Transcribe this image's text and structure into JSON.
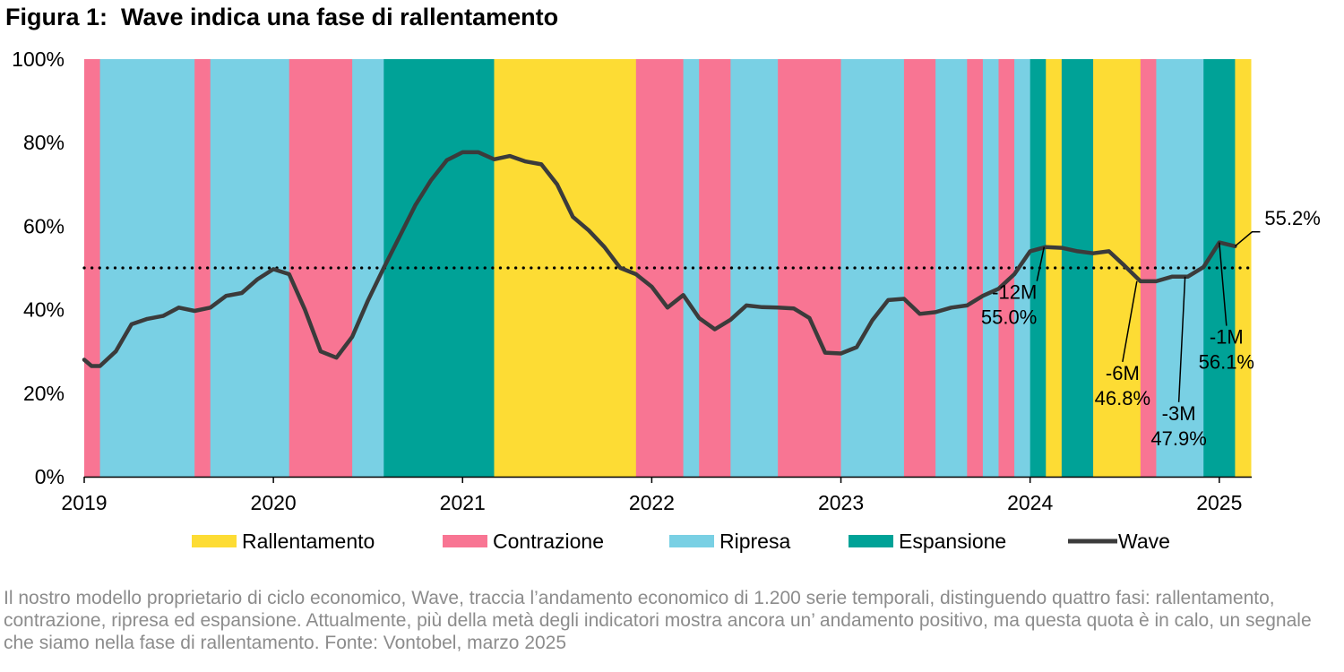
{
  "title": "Figura 1:  Wave indica una fase di rallentamento",
  "caption": "Il nostro modello proprietario di ciclo economico, Wave, traccia l’andamento economico di 1.200 serie temporali, distinguendo quattro fasi: rallentamento, contrazione, ripresa ed espansione. Attualmente, più della metà degli indicatori mostra ancora un’ andamento positivo, ma questa quota è in calo, un segnale che siamo nella fase di rallentamento. Fonte: Vontobel, marzo 2025",
  "colors": {
    "Rallentamento": "#fddc34",
    "Contrazione": "#f87593",
    "Ripresa": "#79d0e4",
    "Espansione": "#00a297",
    "Wave": "#3b3b3b"
  },
  "chart_data": {
    "type": "line",
    "y_tick_labels": [
      "0%",
      "20%",
      "40%",
      "60%",
      "80%",
      "100%"
    ],
    "ylim": [
      0,
      100
    ],
    "x_tick_labels": [
      "2019",
      "2020",
      "2021",
      "2022",
      "2023",
      "2024",
      "2025"
    ],
    "xlim": [
      "2019-01",
      "2025-03"
    ],
    "reference_line": 50,
    "legend": [
      {
        "label": "Rallentamento",
        "key": "Rallentamento",
        "kind": "bar"
      },
      {
        "label": "Contrazione",
        "key": "Contrazione",
        "kind": "bar"
      },
      {
        "label": "Ripresa",
        "key": "Ripresa",
        "kind": "bar"
      },
      {
        "label": "Espansione",
        "key": "Espansione",
        "kind": "bar"
      },
      {
        "label": "Wave",
        "key": "Wave",
        "kind": "line"
      }
    ],
    "phases": [
      {
        "start": "2019-01",
        "end": "2019-01",
        "phase": "Contrazione"
      },
      {
        "start": "2019-02",
        "end": "2019-07",
        "phase": "Ripresa"
      },
      {
        "start": "2019-08",
        "end": "2019-08",
        "phase": "Contrazione"
      },
      {
        "start": "2019-09",
        "end": "2020-01",
        "phase": "Ripresa"
      },
      {
        "start": "2020-02",
        "end": "2020-05",
        "phase": "Contrazione"
      },
      {
        "start": "2020-06",
        "end": "2020-07",
        "phase": "Ripresa"
      },
      {
        "start": "2020-08",
        "end": "2021-02",
        "phase": "Espansione"
      },
      {
        "start": "2021-03",
        "end": "2021-11",
        "phase": "Rallentamento"
      },
      {
        "start": "2021-12",
        "end": "2022-02",
        "phase": "Contrazione"
      },
      {
        "start": "2022-03",
        "end": "2022-03",
        "phase": "Ripresa"
      },
      {
        "start": "2022-04",
        "end": "2022-05",
        "phase": "Contrazione"
      },
      {
        "start": "2022-06",
        "end": "2022-08",
        "phase": "Ripresa"
      },
      {
        "start": "2022-09",
        "end": "2022-12",
        "phase": "Contrazione"
      },
      {
        "start": "2023-01",
        "end": "2023-04",
        "phase": "Ripresa"
      },
      {
        "start": "2023-05",
        "end": "2023-06",
        "phase": "Contrazione"
      },
      {
        "start": "2023-07",
        "end": "2023-08",
        "phase": "Ripresa"
      },
      {
        "start": "2023-09",
        "end": "2023-09",
        "phase": "Contrazione"
      },
      {
        "start": "2023-10",
        "end": "2023-10",
        "phase": "Ripresa"
      },
      {
        "start": "2023-11",
        "end": "2023-11",
        "phase": "Contrazione"
      },
      {
        "start": "2023-12",
        "end": "2023-12",
        "phase": "Ripresa"
      },
      {
        "start": "2024-01",
        "end": "2024-01",
        "phase": "Espansione"
      },
      {
        "start": "2024-02",
        "end": "2024-02",
        "phase": "Rallentamento"
      },
      {
        "start": "2024-03",
        "end": "2024-04",
        "phase": "Espansione"
      },
      {
        "start": "2024-05",
        "end": "2024-07",
        "phase": "Rallentamento"
      },
      {
        "start": "2024-08",
        "end": "2024-08",
        "phase": "Contrazione"
      },
      {
        "start": "2024-09",
        "end": "2024-11",
        "phase": "Ripresa"
      },
      {
        "start": "2024-12",
        "end": "2025-01",
        "phase": "Espansione"
      },
      {
        "start": "2025-02",
        "end": "2025-02",
        "phase": "Rallentamento"
      }
    ],
    "series": [
      {
        "name": "Wave",
        "points": [
          [
            "2019-01",
            28
          ],
          [
            "2019-01-15",
            26.5
          ],
          [
            "2019-02",
            26.5
          ],
          [
            "2019-03",
            30
          ],
          [
            "2019-04",
            36.5
          ],
          [
            "2019-05",
            37.8
          ],
          [
            "2019-06",
            38.5
          ],
          [
            "2019-07",
            40.5
          ],
          [
            "2019-08",
            39.7
          ],
          [
            "2019-09",
            40.5
          ],
          [
            "2019-10",
            43.3
          ],
          [
            "2019-11",
            44
          ],
          [
            "2019-12",
            47.3
          ],
          [
            "2020-01",
            49.7
          ],
          [
            "2020-02",
            48.5
          ],
          [
            "2020-03",
            40
          ],
          [
            "2020-04",
            30
          ],
          [
            "2020-05",
            28.5
          ],
          [
            "2020-06",
            33.5
          ],
          [
            "2020-07",
            42.2
          ],
          [
            "2020-08",
            50
          ],
          [
            "2020-09",
            57.5
          ],
          [
            "2020-10",
            65
          ],
          [
            "2020-11",
            71
          ],
          [
            "2020-12",
            75.8
          ],
          [
            "2021-01",
            77.7
          ],
          [
            "2021-02",
            77.7
          ],
          [
            "2021-03",
            76
          ],
          [
            "2021-04",
            76.8
          ],
          [
            "2021-05",
            75.5
          ],
          [
            "2021-06",
            74.8
          ],
          [
            "2021-07",
            70
          ],
          [
            "2021-08",
            62.2
          ],
          [
            "2021-09",
            59
          ],
          [
            "2021-10",
            55
          ],
          [
            "2021-11",
            50
          ],
          [
            "2021-12",
            48.5
          ],
          [
            "2022-01",
            45.5
          ],
          [
            "2022-02",
            40.5
          ],
          [
            "2022-03",
            43.5
          ],
          [
            "2022-04",
            38
          ],
          [
            "2022-05",
            35.3
          ],
          [
            "2022-06",
            37.6
          ],
          [
            "2022-07",
            41
          ],
          [
            "2022-08",
            40.6
          ],
          [
            "2022-09",
            40.5
          ],
          [
            "2022-10",
            40.3
          ],
          [
            "2022-11",
            38
          ],
          [
            "2022-12",
            29.7
          ],
          [
            "2023-01",
            29.5
          ],
          [
            "2023-02",
            31
          ],
          [
            "2023-03",
            37.5
          ],
          [
            "2023-04",
            42.3
          ],
          [
            "2023-05",
            42.6
          ],
          [
            "2023-06",
            39
          ],
          [
            "2023-07",
            39.4
          ],
          [
            "2023-08",
            40.5
          ],
          [
            "2023-09",
            41
          ],
          [
            "2023-10",
            43.3
          ],
          [
            "2023-11",
            45
          ],
          [
            "2023-12",
            48.5
          ],
          [
            "2024-01",
            54
          ],
          [
            "2024-02",
            55
          ],
          [
            "2024-03",
            54.8
          ],
          [
            "2024-04",
            54
          ],
          [
            "2024-05",
            53.5
          ],
          [
            "2024-06",
            54
          ],
          [
            "2024-07",
            50.5
          ],
          [
            "2024-08",
            46.8
          ],
          [
            "2024-09",
            46.8
          ],
          [
            "2024-10",
            47.9
          ],
          [
            "2024-11",
            47.9
          ],
          [
            "2024-12",
            50.2
          ],
          [
            "2025-01",
            56.1
          ],
          [
            "2025-02",
            55.2
          ]
        ]
      }
    ],
    "annotations": [
      {
        "line1": "-12M",
        "line2": "55.0%",
        "x": "2024-02",
        "y": 55.0,
        "anchor": "end"
      },
      {
        "line1": "-6M",
        "line2": "46.8%",
        "x": "2024-08",
        "y": 46.8,
        "anchor": "middle"
      },
      {
        "line1": "-3M",
        "line2": "47.9%",
        "x": "2024-11",
        "y": 47.9,
        "anchor": "middle"
      },
      {
        "line1": "-1M",
        "line2": "56.1%",
        "x": "2025-01",
        "y": 56.1,
        "anchor": "middle"
      },
      {
        "line1": "55.2%",
        "line2": "",
        "x": "2025-02",
        "y": 55.2,
        "anchor": "start"
      }
    ]
  }
}
